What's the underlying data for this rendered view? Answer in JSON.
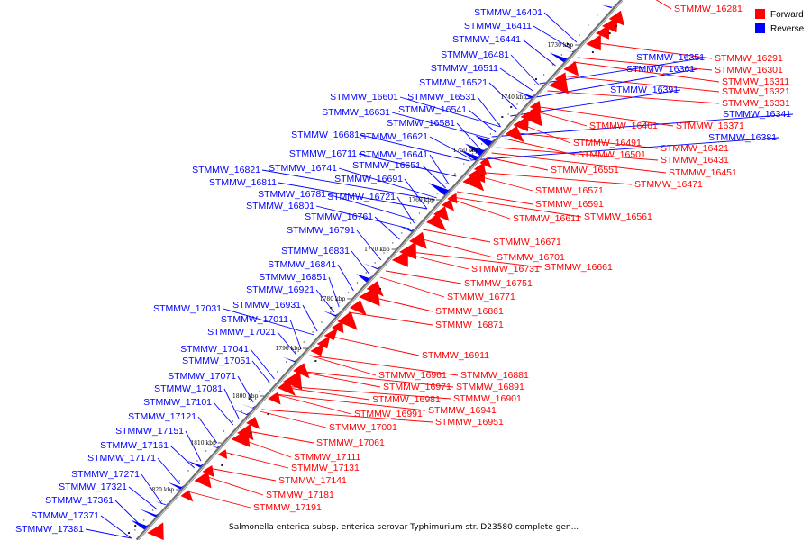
{
  "legend": {
    "forward_label": "Forward",
    "reverse_label": "Reverse",
    "forward_color": "#ff0000",
    "reverse_color": "#0000ff"
  },
  "caption": "Salmonella enterica subsp. enterica serovar Typhimurium str. D23580 complete gen...",
  "ticks": [
    "1730 kbp",
    "1740 kbp",
    "1750 kbp",
    "1760 kbp",
    "1770 kbp",
    "1780 kbp",
    "1790 kbp",
    "1800 kbp",
    "1810 kbp",
    "1820 kbp"
  ],
  "forward_labels": [
    "STMMW_16281",
    "STMMW_16291",
    "STMMW_16301",
    "STMMW_16311",
    "STMMW_16321",
    "STMMW_16331",
    "STMMW_16371",
    "STMMW_16421",
    "STMMW_16431",
    "STMMW_16451",
    "STMMW_16461",
    "STMMW_16471",
    "STMMW_16491",
    "STMMW_16501",
    "STMMW_16551",
    "STMMW_16561",
    "STMMW_16571",
    "STMMW_16591",
    "STMMW_16611",
    "STMMW_16661",
    "STMMW_16671",
    "STMMW_16701",
    "STMMW_16731",
    "STMMW_16751",
    "STMMW_16771",
    "STMMW_16861",
    "STMMW_16871",
    "STMMW_16881",
    "STMMW_16891",
    "STMMW_16901",
    "STMMW_16911",
    "STMMW_16941",
    "STMMW_16951",
    "STMMW_16961",
    "STMMW_16971",
    "STMMW_16981",
    "STMMW_16991",
    "STMMW_17001",
    "STMMW_17061",
    "STMMW_17111",
    "STMMW_17131",
    "STMMW_17141",
    "STMMW_17181",
    "STMMW_17191"
  ],
  "reverse_labels": [
    "STMMW_16341",
    "STMMW_16351",
    "STMMW_16361",
    "STMMW_16381",
    "STMMW_16391",
    "STMMW_16401",
    "STMMW_16411",
    "STMMW_16441",
    "STMMW_16481",
    "STMMW_16511",
    "STMMW_16521",
    "STMMW_16531",
    "STMMW_16541",
    "STMMW_16581",
    "STMMW_16601",
    "STMMW_16621",
    "STMMW_16631",
    "STMMW_16641",
    "STMMW_16651",
    "STMMW_16681",
    "STMMW_16691",
    "STMMW_16711",
    "STMMW_16721",
    "STMMW_16741",
    "STMMW_16761",
    "STMMW_16781",
    "STMMW_16791",
    "STMMW_16801",
    "STMMW_16811",
    "STMMW_16821",
    "STMMW_16831",
    "STMMW_16841",
    "STMMW_16851",
    "STMMW_16921",
    "STMMW_16931",
    "STMMW_17011",
    "STMMW_17021",
    "STMMW_17031",
    "STMMW_17041",
    "STMMW_17051",
    "STMMW_17071",
    "STMMW_17081",
    "STMMW_17101",
    "STMMW_17121",
    "STMMW_17151",
    "STMMW_17161",
    "STMMW_17171",
    "STMMW_17271",
    "STMMW_17321",
    "STMMW_17361",
    "STMMW_17371",
    "STMMW_17381"
  ]
}
